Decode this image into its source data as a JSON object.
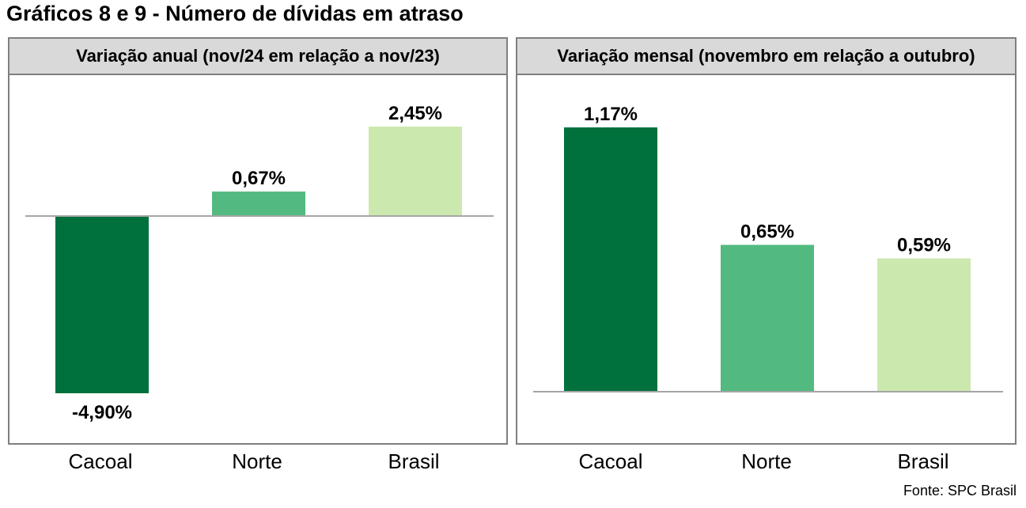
{
  "title": "Gráficos 8 e 9 - Número de dívidas em atraso",
  "source": "Fonte: SPC Brasil",
  "categories": [
    "Cacoal",
    "Norte",
    "Brasil"
  ],
  "colors": {
    "Cacoal": "#00703c",
    "Norte": "#52ba80",
    "Brasil": "#cbe9ae",
    "axis": "#a6a6a6",
    "header_bg": "#d9d9d9",
    "border": "#7f7f7f"
  },
  "chart_data": [
    {
      "type": "bar",
      "title": "Variação anual (nov/24 em relação a nov/23)",
      "categories": [
        "Cacoal",
        "Norte",
        "Brasil"
      ],
      "values": [
        -4.9,
        0.67,
        2.45
      ],
      "labels": [
        "-4,90%",
        "0,67%",
        "2,45%"
      ],
      "ylim": [
        -4.9,
        2.45
      ],
      "grid": false
    },
    {
      "type": "bar",
      "title": "Variação mensal (novembro em relação a outubro)",
      "categories": [
        "Cacoal",
        "Norte",
        "Brasil"
      ],
      "values": [
        1.17,
        0.65,
        0.59
      ],
      "labels": [
        "1,17%",
        "0,65%",
        "0,59%"
      ],
      "ylim": [
        0,
        1.17
      ],
      "grid": false
    }
  ]
}
